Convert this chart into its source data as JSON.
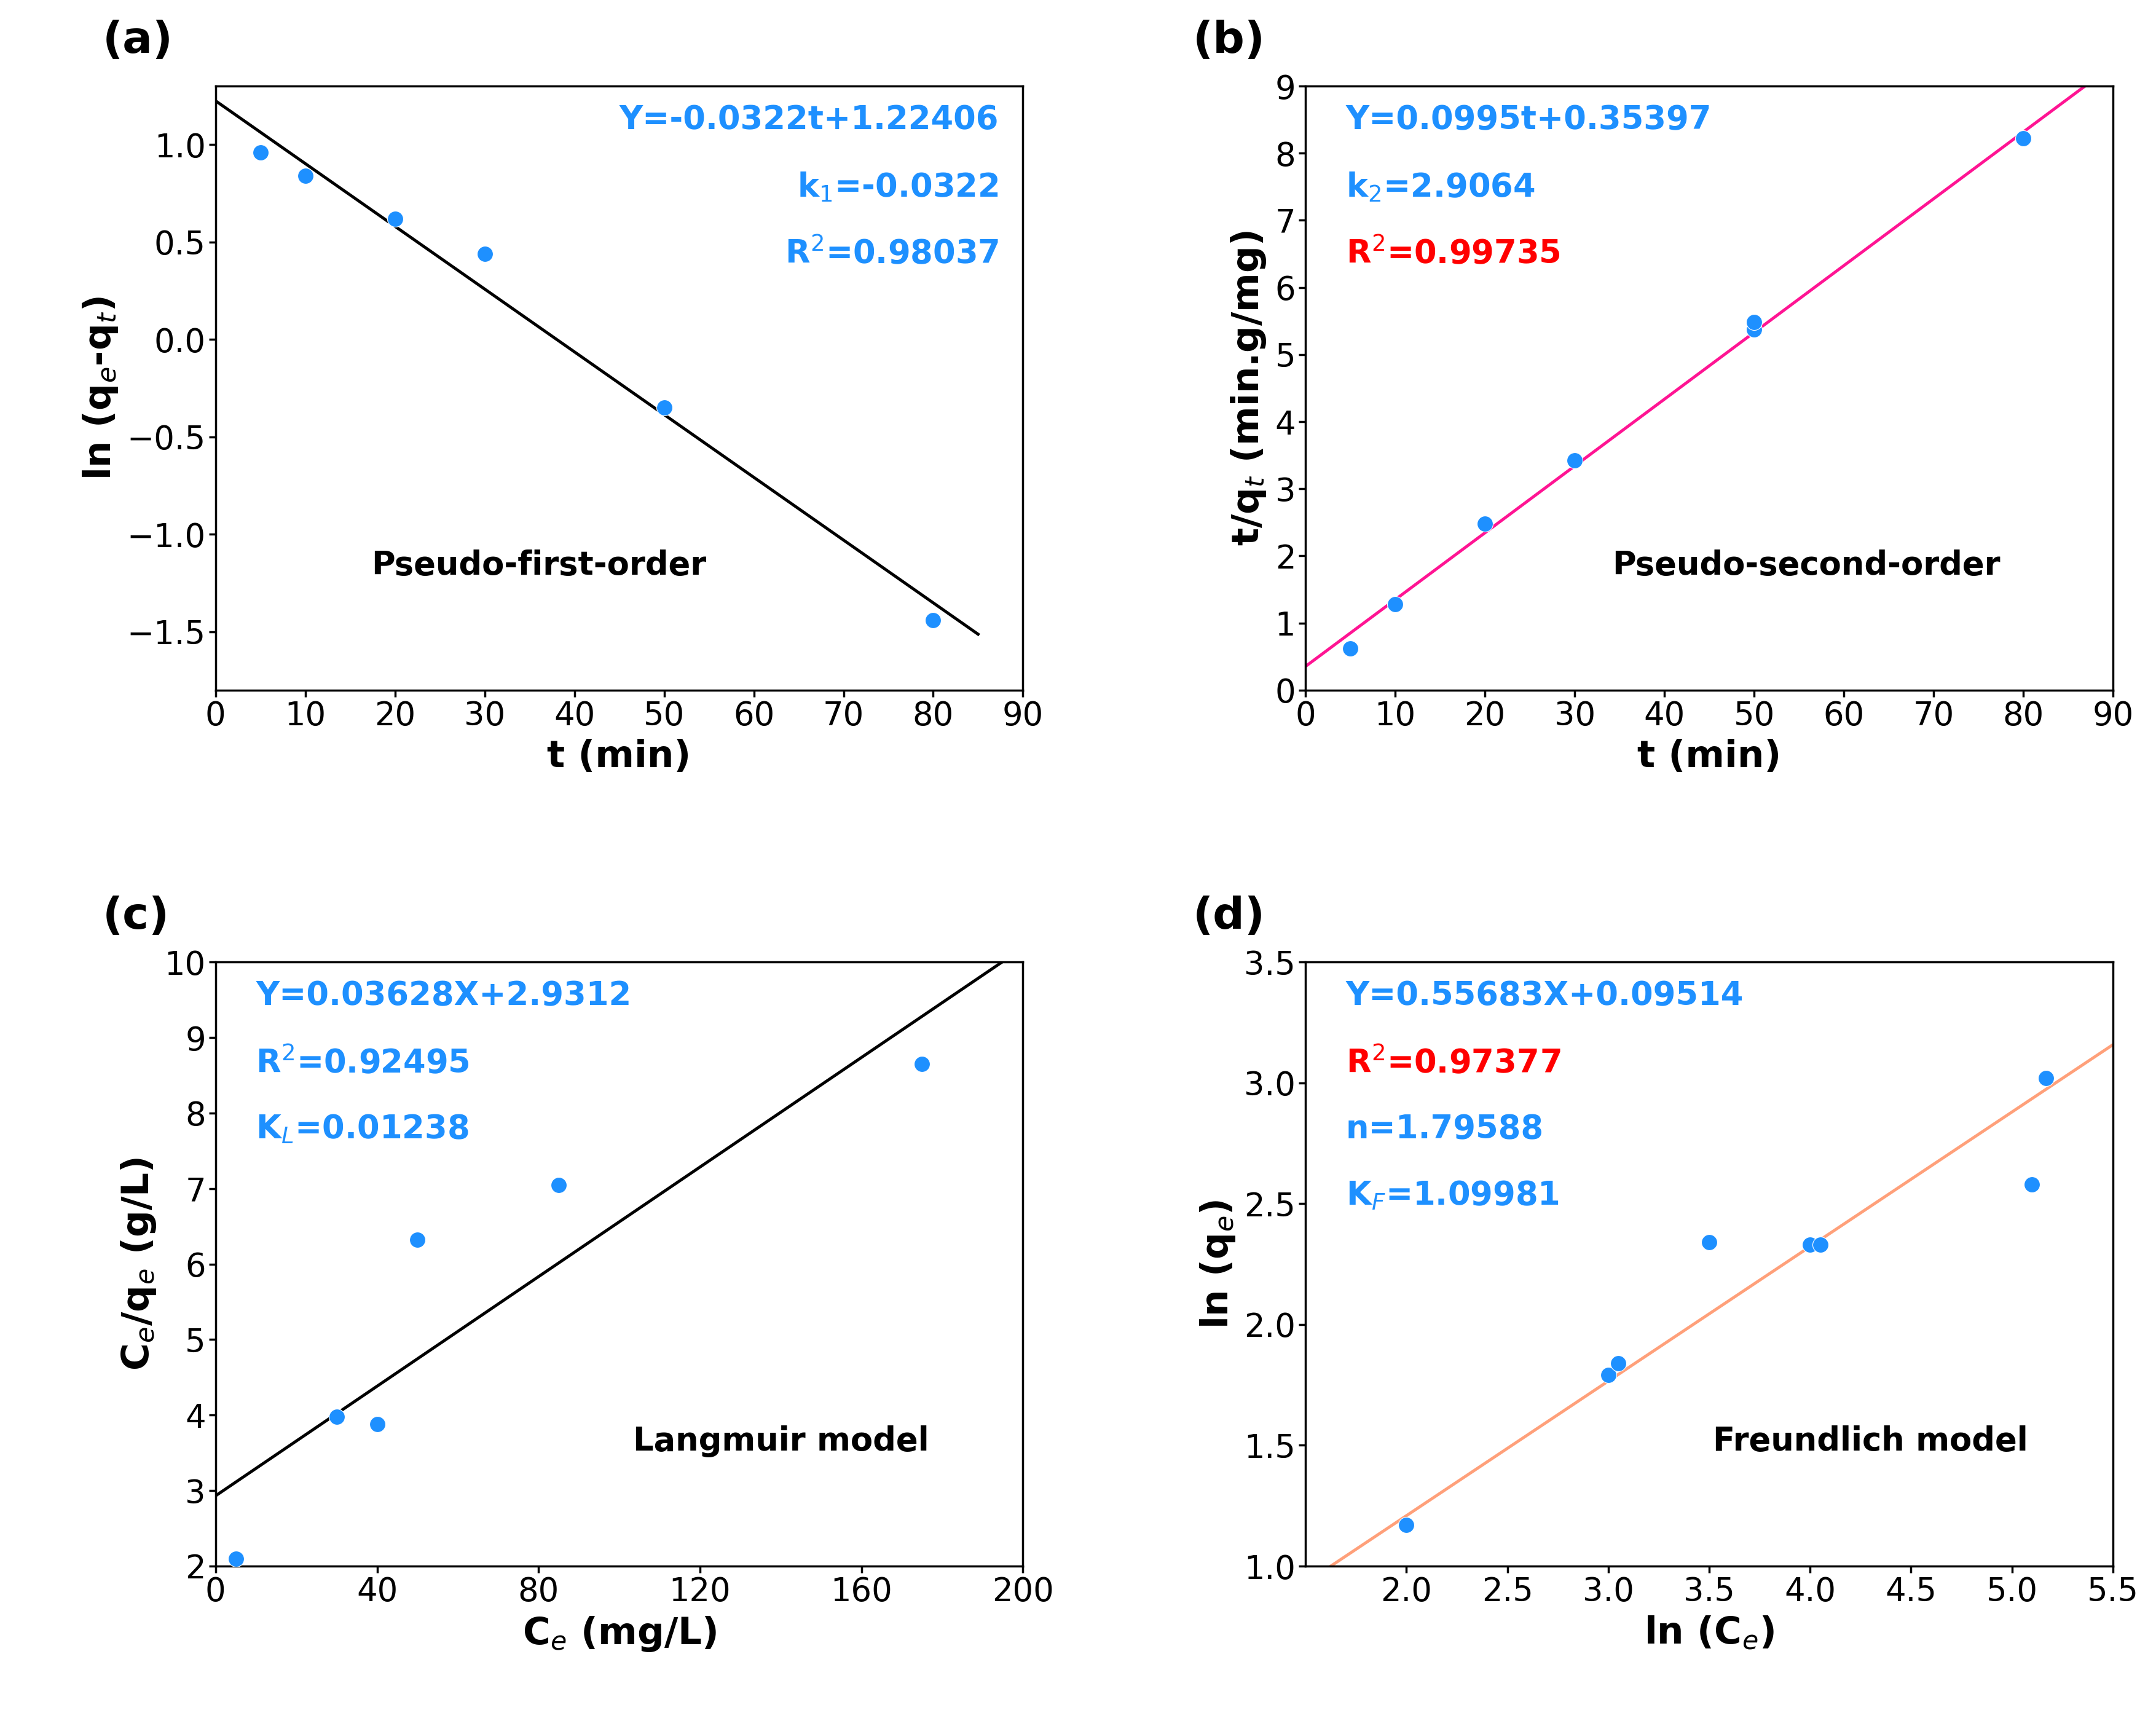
{
  "panel_a": {
    "title": "Pseudo-first-order",
    "xlabel": "t (min)",
    "ylabel": "ln (q$_e$-q$_t$)",
    "x_data": [
      5,
      10,
      20,
      30,
      50,
      80
    ],
    "y_data": [
      0.96,
      0.84,
      0.62,
      0.44,
      -0.35,
      -1.44
    ],
    "line_eq": "Y=-0.0322t+1.22406",
    "k_label": "k$_1$=-0.0322",
    "r2_label": "R$^2$=0.98037",
    "slope": -0.0322,
    "intercept": 1.22406,
    "line_color": "#000000",
    "dot_color": "#1E90FF",
    "text_color": "#1E90FF",
    "xlim": [
      0,
      90
    ],
    "ylim": [
      -1.8,
      1.3
    ],
    "xticks": [
      0,
      10,
      20,
      30,
      40,
      50,
      60,
      70,
      80,
      90
    ],
    "yticks": [
      -1.5,
      -1.0,
      -0.5,
      0.0,
      0.5,
      1.0
    ]
  },
  "panel_b": {
    "title": "Pseudo-second-order",
    "xlabel": "t (min)",
    "ylabel": "t/q$_t$ (min.g/mg)",
    "x_data": [
      5,
      10,
      20,
      30,
      50,
      50,
      80
    ],
    "y_data": [
      0.62,
      1.28,
      2.48,
      3.42,
      5.37,
      5.48,
      8.22
    ],
    "line_eq": "Y=0.0995t+0.35397",
    "k_label": "k$_2$=2.9064",
    "r2_label": "R$^2$=0.99735",
    "slope": 0.0995,
    "intercept": 0.35397,
    "line_color": "#FF1493",
    "dot_color": "#1E90FF",
    "text_color_eq": "#1E90FF",
    "text_color_r2": "#FF0000",
    "xlim": [
      0,
      90
    ],
    "ylim": [
      0,
      9
    ],
    "xticks": [
      0,
      10,
      20,
      30,
      40,
      50,
      60,
      70,
      80,
      90
    ],
    "yticks": [
      0,
      1,
      2,
      3,
      4,
      5,
      6,
      7,
      8,
      9
    ]
  },
  "panel_c": {
    "title": "Langmuir model",
    "xlabel": "C$_e$ (mg/L)",
    "ylabel": "C$_e$/q$_e$ (g/L)",
    "x_data": [
      5,
      30,
      40,
      50,
      85,
      175
    ],
    "y_data": [
      2.1,
      3.98,
      3.88,
      6.32,
      7.05,
      8.65
    ],
    "line_eq": "Y=0.03628X+2.9312",
    "r2_label": "R$^2$=0.92495",
    "k_label": "K$_L$=0.01238",
    "slope": 0.03628,
    "intercept": 2.9312,
    "line_color": "#000000",
    "dot_color": "#1E90FF",
    "text_color": "#1E90FF",
    "xlim": [
      0,
      200
    ],
    "ylim": [
      2,
      10
    ],
    "xticks": [
      0,
      40,
      80,
      120,
      160,
      200
    ],
    "yticks": [
      2,
      3,
      4,
      5,
      6,
      7,
      8,
      9,
      10
    ]
  },
  "panel_d": {
    "title": "Freundlich model",
    "xlabel": "ln (C$_e$)",
    "ylabel": "ln (q$_e$)",
    "x_data": [
      2.0,
      3.0,
      3.05,
      3.5,
      4.0,
      4.05,
      5.1,
      5.17
    ],
    "y_data": [
      1.17,
      1.79,
      1.84,
      2.34,
      2.33,
      2.33,
      2.58,
      3.02
    ],
    "line_eq": "Y=0.55683X+0.09514",
    "r2_label": "R$^2$=0.97377",
    "n_label": "n=1.79588",
    "kf_label": "K$_F$=1.09981",
    "slope": 0.55683,
    "intercept": 0.09514,
    "line_color": "#FFA07A",
    "dot_color": "#1E90FF",
    "text_color_eq": "#1E90FF",
    "text_color_r2": "#FF0000",
    "xlim": [
      1.5,
      5.5
    ],
    "ylim": [
      1.0,
      3.5
    ],
    "xticks": [
      2.0,
      2.5,
      3.0,
      3.5,
      4.0,
      4.5,
      5.0,
      5.5
    ],
    "yticks": [
      1.0,
      1.5,
      2.0,
      2.5,
      3.0,
      3.5
    ]
  },
  "panel_labels": [
    "(a)",
    "(b)",
    "(c)",
    "(d)"
  ],
  "panel_label_fontsize": 52,
  "axis_label_fontsize": 44,
  "tick_fontsize": 38,
  "annotation_fontsize": 38,
  "title_fontsize": 38,
  "dot_size": 350,
  "line_width": 3.5
}
